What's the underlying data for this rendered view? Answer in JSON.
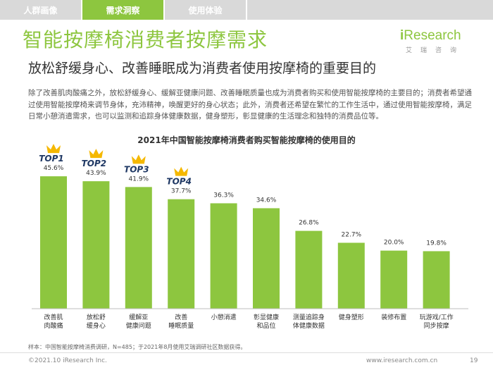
{
  "tabs": [
    {
      "label": "人群画像",
      "active": false
    },
    {
      "label": "需求洞察",
      "active": true
    },
    {
      "label": "使用体验",
      "active": false
    }
  ],
  "title": "智能按摩椅消费者按摩需求",
  "logo": {
    "brand_i": "i",
    "brand_rest": "Research",
    "sub": "艾瑞咨询"
  },
  "subtitle": "放松舒缓身心、改善睡眠成为消费者使用按摩椅的重要目的",
  "paragraph": "除了改善肌肉酸痛之外，放松舒缓身心、缓解亚健康问题、改善睡眠质量也成为消费者购买和使用智能按摩椅的主要目的；消费者希望通过使用智能按摩椅来调节身体，充沛精神，唤醒更好的身心状态；此外，消费者还希望在繁忙的工作生活中，通过使用智能按摩椅，满足日常小憩消遣需求，也可以监测和追踪身体健康数据，健身塑形，彰显健康的生活理念和独特的消费品位等。",
  "colors": {
    "accent": "#8dc63f",
    "crown": "#f5b800",
    "top_label": "#1f3864"
  },
  "chart_data": {
    "type": "bar",
    "title": "2021年中国智能按摩椅消费者购买智能按摩椅的使用目的",
    "categories": [
      "改善肌\n肉酸痛",
      "放松舒\n缓身心",
      "缓解亚\n健康问题",
      "改善\n睡眠质量",
      "小憩消遣",
      "彰显健康\n和品位",
      "测量追踪身\n体健康数据",
      "健身塑形",
      "装修布置",
      "玩游戏/工作\n同步按摩"
    ],
    "values": [
      45.6,
      43.9,
      41.9,
      37.7,
      36.3,
      34.6,
      26.8,
      22.7,
      20.0,
      19.8
    ],
    "value_labels": [
      "45.6%",
      "43.9%",
      "41.9%",
      "37.7%",
      "36.3%",
      "34.6%",
      "26.8%",
      "22.7%",
      "20.0%",
      "19.8%"
    ],
    "top_labels": [
      "TOP1",
      "TOP2",
      "TOP3",
      "TOP4"
    ],
    "ylim": [
      0,
      50
    ],
    "xlabel": "",
    "ylabel": "",
    "grid": false
  },
  "source": "样本：中国智能按摩椅消费调研，N=485；于2021年8月使用艾瑞调研社区数据获得。",
  "footer": {
    "copyright": "©2021.10 iResearch Inc.",
    "site": "www.iresearch.com.cn",
    "page": "19"
  }
}
